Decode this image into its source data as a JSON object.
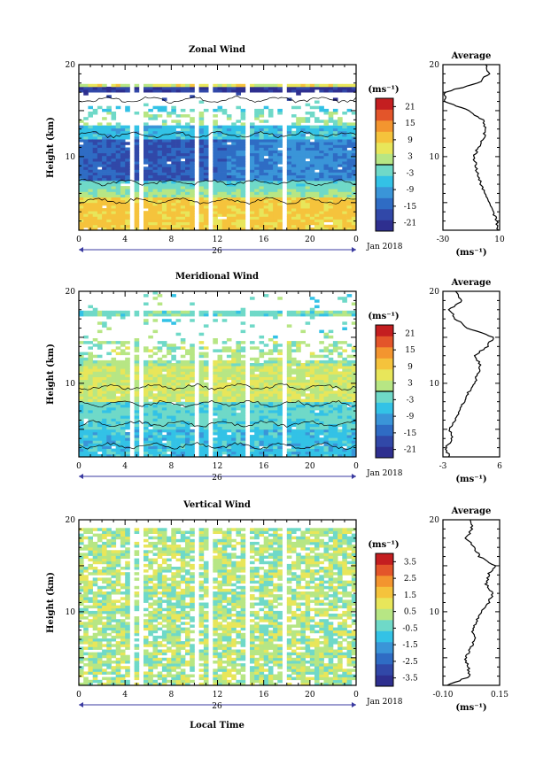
{
  "x_axis": {
    "ticks": [
      "0",
      "4",
      "8",
      "12",
      "16",
      "20",
      "0"
    ],
    "tick_values": [
      0,
      4,
      8,
      12,
      16,
      20,
      24
    ],
    "date_label": "26",
    "month_label": "Jan 2018",
    "xlabel": "Local Time"
  },
  "y_axis": {
    "label": "Height (km)",
    "ticks": [
      "10",
      "20"
    ],
    "range": [
      2,
      20
    ]
  },
  "unit_label": "(ms⁻¹)",
  "average_title": "Average",
  "palette": [
    "#2e2f8f",
    "#3148a8",
    "#2f6cc4",
    "#3a95d8",
    "#33c2e6",
    "#6fd9c8",
    "#b7e684",
    "#e8e65a",
    "#f5c33c",
    "#f3952f",
    "#e3552a",
    "#c41e20"
  ],
  "panels": [
    {
      "id": "zonal",
      "title": "Zonal Wind",
      "colorbar_ticks": [
        "21",
        "15",
        "9",
        "3",
        "-3",
        "-9",
        "-15",
        "-21"
      ],
      "colorbar_range": [
        -24,
        24
      ],
      "avg_xticks": [
        "-30",
        "10"
      ],
      "avg_xrange": [
        -30,
        10
      ]
    },
    {
      "id": "meridional",
      "title": "Meridional Wind",
      "colorbar_ticks": [
        "21",
        "15",
        "9",
        "3",
        "-3",
        "-9",
        "-15",
        "-21"
      ],
      "colorbar_range": [
        -24,
        24
      ],
      "avg_xticks": [
        "-3",
        "6"
      ],
      "avg_xrange": [
        -3,
        6
      ]
    },
    {
      "id": "vertical",
      "title": "Vertical Wind",
      "colorbar_ticks": [
        "3.5",
        "2.5",
        "1.5",
        "0.5",
        "-0.5",
        "-1.5",
        "-2.5",
        "-3.5"
      ],
      "colorbar_range": [
        -4,
        4
      ],
      "avg_xticks": [
        "-0.10",
        "0.15"
      ],
      "avg_xrange": [
        -0.1,
        0.15
      ]
    }
  ],
  "chart_data": [
    {
      "type": "heatmap",
      "title": "Zonal Wind",
      "xlabel": "",
      "ylabel": "Height (km)",
      "xlim": [
        0,
        24
      ],
      "ylim": [
        2,
        20
      ],
      "colorbar_unit": "(ms⁻¹)",
      "colorbar_range": [
        -24,
        24
      ],
      "data_gaps_hours": [
        [
          4.2,
          4.6
        ],
        [
          5.1,
          5.6
        ],
        [
          10.2,
          10.6
        ],
        [
          11.1,
          11.6
        ],
        [
          14.6,
          15.0
        ],
        [
          17.6,
          17.9
        ]
      ],
      "mean_profile": {
        "height_km": [
          2,
          3,
          4,
          5,
          6,
          7,
          8,
          9,
          10,
          11,
          12,
          13,
          14,
          15,
          16,
          17,
          18,
          19,
          20
        ],
        "value": [
          9,
          8,
          5,
          3,
          0,
          -3,
          -5,
          -7,
          -8,
          -5,
          -1,
          0,
          -2,
          -12,
          -28,
          -29,
          -5,
          2,
          0
        ]
      }
    },
    {
      "type": "heatmap",
      "title": "Meridional Wind",
      "xlabel": "",
      "ylabel": "Height (km)",
      "xlim": [
        0,
        24
      ],
      "ylim": [
        2,
        20
      ],
      "colorbar_unit": "(ms⁻¹)",
      "colorbar_range": [
        -24,
        24
      ],
      "data_gaps_hours": [
        [
          4.2,
          4.6
        ],
        [
          5.1,
          5.6
        ],
        [
          10.2,
          10.6
        ],
        [
          11.1,
          11.6
        ],
        [
          14.6,
          15.0
        ],
        [
          17.6,
          17.9
        ]
      ],
      "mean_profile": {
        "height_km": [
          2,
          3,
          4,
          5,
          6,
          7,
          8,
          9,
          10,
          11,
          12,
          13,
          14,
          15,
          16,
          17,
          18,
          19,
          20
        ],
        "value": [
          -2,
          -2.5,
          -1.5,
          -2,
          -1,
          -0.5,
          0.5,
          1,
          2,
          2.5,
          3,
          2,
          4,
          5,
          1,
          -1,
          -2,
          0,
          -1
        ]
      }
    },
    {
      "type": "heatmap",
      "title": "Vertical Wind",
      "xlabel": "Local Time",
      "ylabel": "Height (km)",
      "xlim": [
        0,
        24
      ],
      "ylim": [
        2,
        20
      ],
      "colorbar_unit": "(ms⁻¹)",
      "colorbar_range": [
        -4,
        4
      ],
      "data_gaps_hours": [
        [
          4.2,
          4.6
        ],
        [
          5.1,
          5.6
        ],
        [
          10.2,
          10.6
        ],
        [
          11.1,
          11.6
        ],
        [
          14.6,
          15.0
        ],
        [
          17.6,
          17.9
        ]
      ],
      "mean_profile": {
        "height_km": [
          2,
          3,
          4,
          5,
          6,
          7,
          8,
          9,
          10,
          11,
          12,
          13,
          14,
          15,
          16,
          17,
          18,
          19,
          20
        ],
        "value": [
          -0.08,
          0.02,
          0.01,
          0.0,
          0.02,
          0.04,
          0.03,
          0.05,
          0.07,
          0.1,
          0.12,
          0.09,
          0.1,
          0.13,
          0.06,
          0.04,
          0.0,
          0.03,
          0.02
        ]
      }
    }
  ]
}
